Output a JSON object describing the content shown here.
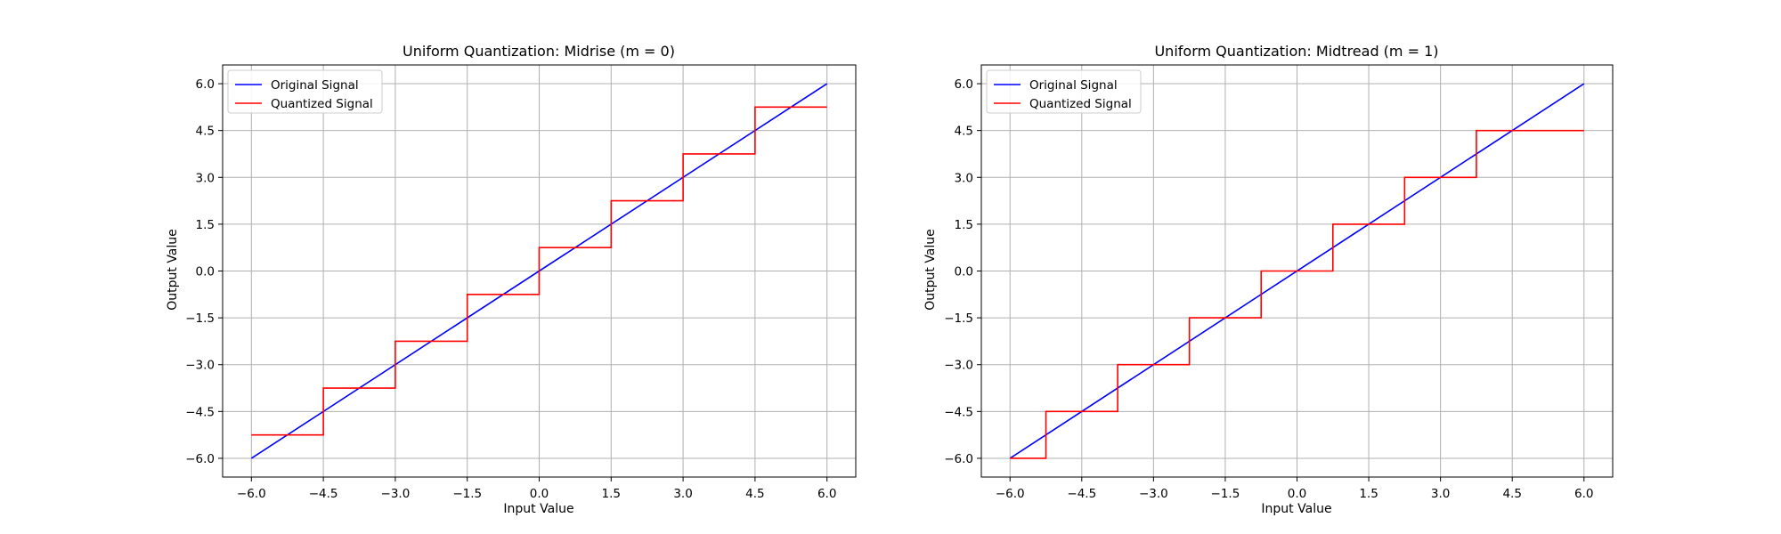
{
  "chart_data": [
    {
      "type": "line",
      "title": "Uniform Quantization: Midrise (m = 0)",
      "xlabel": "Input Value",
      "ylabel": "Output Value",
      "xlim": [
        -6.6,
        6.6
      ],
      "ylim": [
        -6.6,
        6.6
      ],
      "xticks": [
        -6.0,
        -4.5,
        -3.0,
        -1.5,
        0.0,
        1.5,
        3.0,
        4.5,
        6.0
      ],
      "yticks": [
        -6.0,
        -4.5,
        -3.0,
        -1.5,
        0.0,
        1.5,
        3.0,
        4.5,
        6.0
      ],
      "xtick_labels": [
        "−6.0",
        "−4.5",
        "−3.0",
        "−1.5",
        "0.0",
        "1.5",
        "3.0",
        "4.5",
        "6.0"
      ],
      "ytick_labels": [
        "−6.0",
        "−4.5",
        "−3.0",
        "−1.5",
        "0.0",
        "1.5",
        "3.0",
        "4.5",
        "6.0"
      ],
      "grid": true,
      "legend_position": "top-left",
      "series": [
        {
          "name": "Original Signal",
          "color": "#0000ff",
          "x": [
            -6,
            6
          ],
          "y": [
            -6,
            6
          ],
          "step": false
        },
        {
          "name": "Quantized Signal",
          "color": "#ff0000",
          "step": true,
          "x": [
            -6,
            -4.5,
            -4.5,
            -3,
            -3,
            -1.5,
            -1.5,
            0,
            0,
            1.5,
            1.5,
            3,
            3,
            4.5,
            4.5,
            6
          ],
          "y": [
            -5.25,
            -5.25,
            -3.75,
            -3.75,
            -2.25,
            -2.25,
            -0.75,
            -0.75,
            0.75,
            0.75,
            2.25,
            2.25,
            3.75,
            3.75,
            5.25,
            5.25
          ]
        }
      ]
    },
    {
      "type": "line",
      "title": "Uniform Quantization: Midtread (m = 1)",
      "xlabel": "Input Value",
      "ylabel": "Output Value",
      "xlim": [
        -6.6,
        6.6
      ],
      "ylim": [
        -6.6,
        6.6
      ],
      "xticks": [
        -6.0,
        -4.5,
        -3.0,
        -1.5,
        0.0,
        1.5,
        3.0,
        4.5,
        6.0
      ],
      "yticks": [
        -6.0,
        -4.5,
        -3.0,
        -1.5,
        0.0,
        1.5,
        3.0,
        4.5,
        6.0
      ],
      "xtick_labels": [
        "−6.0",
        "−4.5",
        "−3.0",
        "−1.5",
        "0.0",
        "1.5",
        "3.0",
        "4.5",
        "6.0"
      ],
      "ytick_labels": [
        "−6.0",
        "−4.5",
        "−3.0",
        "−1.5",
        "0.0",
        "1.5",
        "3.0",
        "4.5",
        "6.0"
      ],
      "grid": true,
      "legend_position": "top-left",
      "series": [
        {
          "name": "Original Signal",
          "color": "#0000ff",
          "x": [
            -6,
            6
          ],
          "y": [
            -6,
            6
          ],
          "step": false
        },
        {
          "name": "Quantized Signal",
          "color": "#ff0000",
          "step": true,
          "x": [
            -6,
            -5.25,
            -5.25,
            -3.75,
            -3.75,
            -2.25,
            -2.25,
            -0.75,
            -0.75,
            0.75,
            0.75,
            2.25,
            2.25,
            3.75,
            3.75,
            6
          ],
          "y": [
            -6,
            -6,
            -4.5,
            -4.5,
            -3,
            -3,
            -1.5,
            -1.5,
            0,
            0,
            1.5,
            1.5,
            3,
            3,
            4.5,
            4.5
          ]
        }
      ]
    }
  ]
}
